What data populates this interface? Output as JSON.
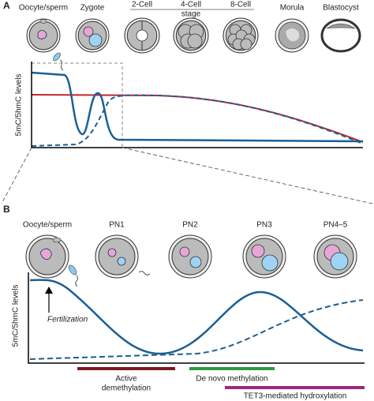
{
  "panel_a": {
    "label": "A",
    "stages": [
      "Oocyte/sperm",
      "Zygote",
      "2-Cell",
      "4-Cell",
      "8-Cell",
      "Morula",
      "Blastocyst"
    ],
    "stage_group": "stage",
    "y_label": "5mC/5hmC levels"
  },
  "panel_b": {
    "label": "B",
    "stages": [
      "Oocyte/sperm",
      "PN1",
      "PN2",
      "PN3",
      "PN4–5"
    ],
    "y_label": "5mC/5hmC levels",
    "annotation": "Fertilization",
    "phases": [
      {
        "lines": [
          "Active",
          "demethylation"
        ]
      },
      {
        "lines": [
          "De novo methylation"
        ]
      },
      {
        "lines": [
          "TET3-mediated hydroxylation"
        ]
      }
    ]
  }
}
